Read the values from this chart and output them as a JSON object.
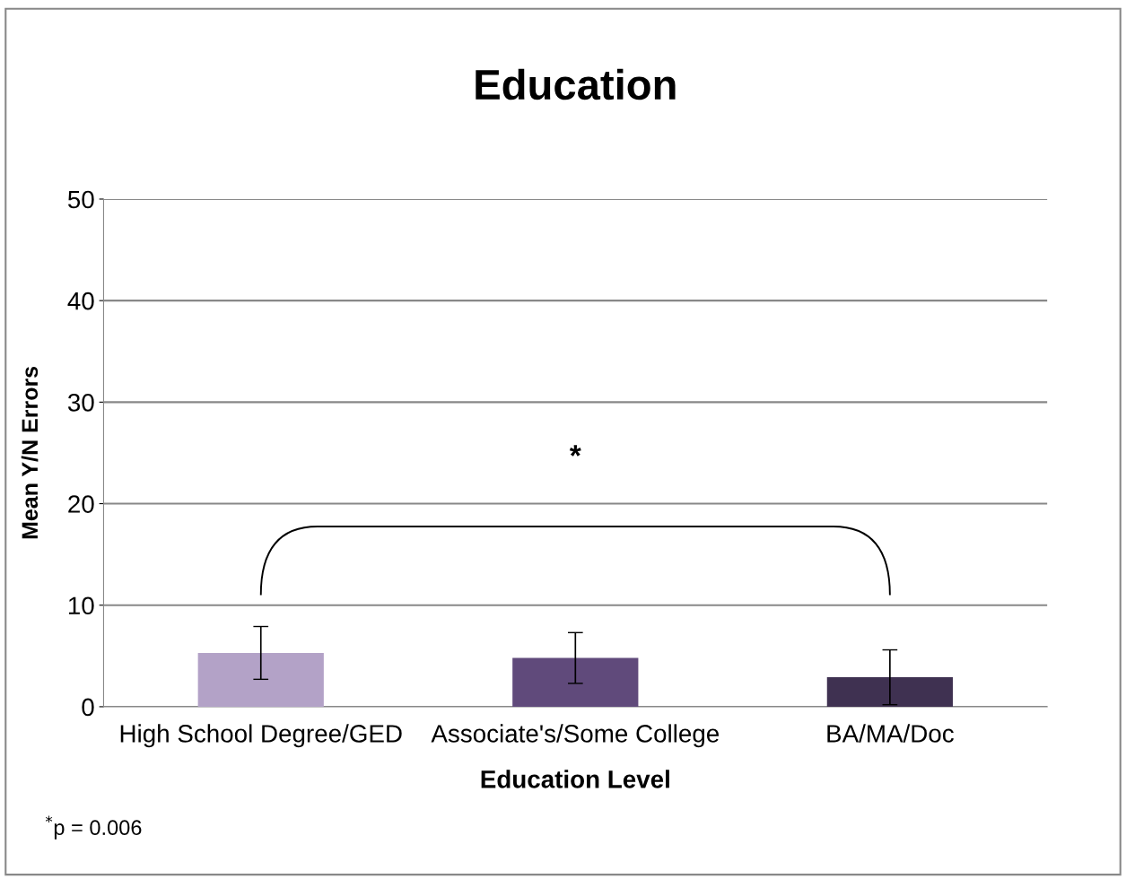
{
  "chart_data": {
    "type": "bar",
    "title": "Education",
    "xlabel": "Education Level",
    "ylabel": "Mean Y/N Errors",
    "categories": [
      "High School Degree/GED",
      "Associate's/Some College",
      "BA/MA/Doc"
    ],
    "values": [
      5.3,
      4.8,
      2.9
    ],
    "colors": [
      "#b3a2c7",
      "#604a7b",
      "#3f3151"
    ],
    "errors": [
      2.6,
      2.5,
      2.7
    ],
    "ylim": [
      0,
      50
    ],
    "yticks": [
      0,
      10,
      20,
      30,
      40,
      50
    ],
    "grid": "y",
    "legend": false,
    "annotations": [
      "*",
      "$^{*}$p = 0.006"
    ]
  }
}
